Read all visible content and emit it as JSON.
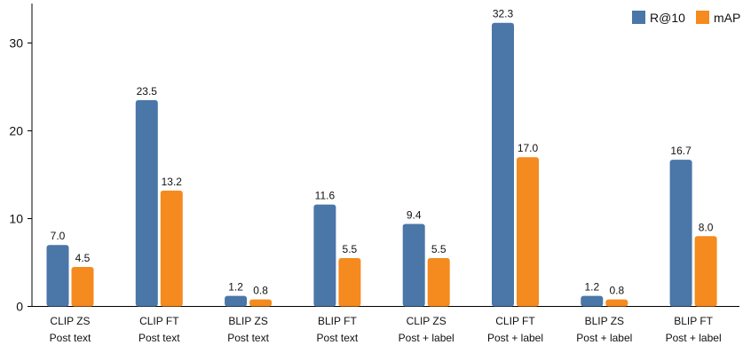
{
  "chart_data": {
    "type": "bar",
    "categories": [
      [
        "CLIP ZS",
        "Post text"
      ],
      [
        "CLIP FT",
        "Post text"
      ],
      [
        "BLIP ZS",
        "Post text"
      ],
      [
        "BLIP FT",
        "Post text"
      ],
      [
        "CLIP ZS",
        "Post + label"
      ],
      [
        "CLIP FT",
        "Post + label"
      ],
      [
        "BLIP ZS",
        "Post + label"
      ],
      [
        "BLIP FT",
        "Post + label"
      ]
    ],
    "series": [
      {
        "name": "R@10",
        "color": "#4a76a8",
        "values": [
          7.0,
          23.5,
          1.2,
          11.6,
          9.4,
          32.3,
          1.2,
          16.7
        ],
        "labels": [
          "7.0",
          "23.5",
          "1.2",
          "11.6",
          "9.4",
          "32.3",
          "1.2",
          "16.7"
        ]
      },
      {
        "name": "mAP",
        "color": "#f58a1f",
        "values": [
          4.5,
          13.2,
          0.8,
          5.5,
          5.5,
          17.0,
          0.8,
          8.0
        ],
        "labels": [
          "4.5",
          "13.2",
          "0.8",
          "5.5",
          "5.5",
          "17.0",
          "0.8",
          "8.0"
        ]
      }
    ],
    "yticks": [
      "0",
      "10",
      "20",
      "30"
    ],
    "ylim": [
      0,
      34.4
    ],
    "grid": false,
    "legend_position": "top-right",
    "title": "",
    "xlabel": "",
    "ylabel": ""
  }
}
